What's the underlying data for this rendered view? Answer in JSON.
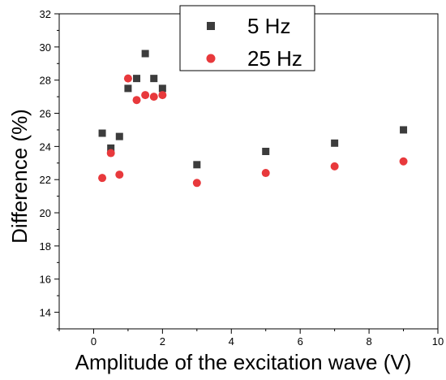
{
  "chart_data": {
    "type": "scatter",
    "title": "",
    "xlabel": "Amplitude of the excitation wave (V)",
    "ylabel": "Difference (%)",
    "xlim": [
      -1,
      10
    ],
    "ylim": [
      13,
      32
    ],
    "x_ticks": [
      0,
      2,
      4,
      6,
      8,
      10
    ],
    "y_ticks": [
      14,
      16,
      18,
      20,
      22,
      24,
      26,
      28,
      30,
      32
    ],
    "grid": false,
    "legend_position": "top-center",
    "series": [
      {
        "name": "5 Hz",
        "marker": "square",
        "color": "#3c3c3c",
        "points": [
          {
            "x": 0.25,
            "y": 24.8
          },
          {
            "x": 0.5,
            "y": 23.9
          },
          {
            "x": 0.75,
            "y": 24.6
          },
          {
            "x": 1.0,
            "y": 27.5
          },
          {
            "x": 1.25,
            "y": 28.1
          },
          {
            "x": 1.5,
            "y": 29.6
          },
          {
            "x": 1.75,
            "y": 28.1
          },
          {
            "x": 2.0,
            "y": 27.5
          },
          {
            "x": 3.0,
            "y": 22.9
          },
          {
            "x": 5.0,
            "y": 23.7
          },
          {
            "x": 7.0,
            "y": 24.2
          },
          {
            "x": 9.0,
            "y": 25.0
          }
        ]
      },
      {
        "name": "25 Hz",
        "marker": "circle",
        "color": "#e8393c",
        "points": [
          {
            "x": 0.25,
            "y": 22.1
          },
          {
            "x": 0.5,
            "y": 23.6
          },
          {
            "x": 0.75,
            "y": 22.3
          },
          {
            "x": 1.0,
            "y": 28.1
          },
          {
            "x": 1.25,
            "y": 26.8
          },
          {
            "x": 1.5,
            "y": 27.1
          },
          {
            "x": 1.75,
            "y": 27.0
          },
          {
            "x": 2.0,
            "y": 27.1
          },
          {
            "x": 3.0,
            "y": 21.8
          },
          {
            "x": 5.0,
            "y": 22.4
          },
          {
            "x": 7.0,
            "y": 22.8
          },
          {
            "x": 9.0,
            "y": 23.1
          }
        ]
      }
    ]
  }
}
